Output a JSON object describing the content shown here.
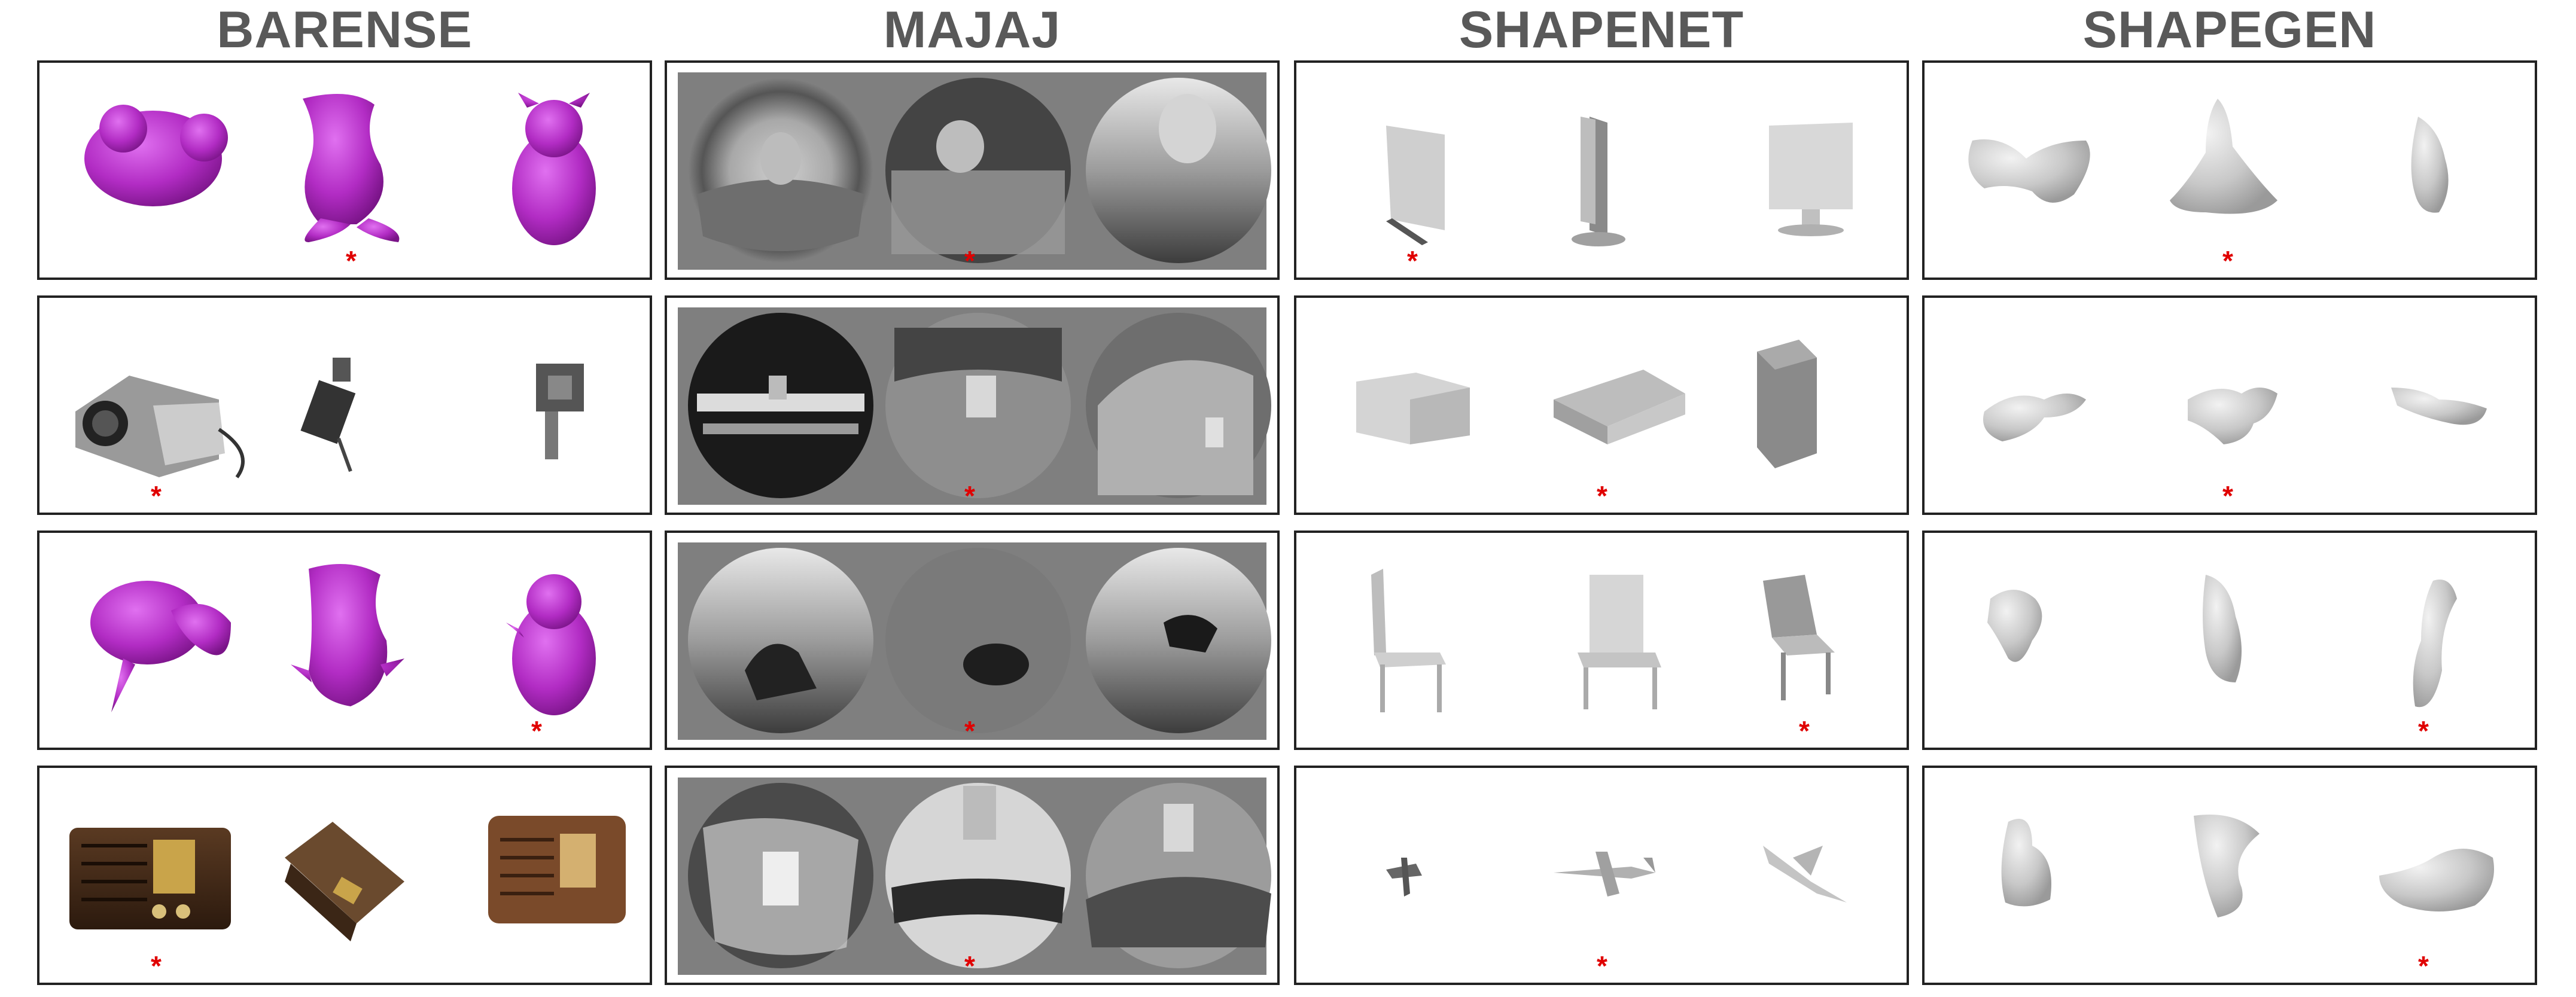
{
  "columns": [
    {
      "title": "BARENSE"
    },
    {
      "title": "MAJAJ"
    },
    {
      "title": "SHAPENET"
    },
    {
      "title": "SHAPEGEN"
    }
  ],
  "odd_one_out_marker": "*",
  "odd_one_out_index": [
    [
      1,
      1,
      0,
      1
    ],
    [
      0,
      1,
      1,
      1
    ],
    [
      2,
      1,
      2,
      2
    ],
    [
      0,
      1,
      1,
      2
    ]
  ],
  "colors": {
    "title": "#595959",
    "marker": "#e00000",
    "barense_mesh": "#b22cc4",
    "border": "#222222"
  }
}
